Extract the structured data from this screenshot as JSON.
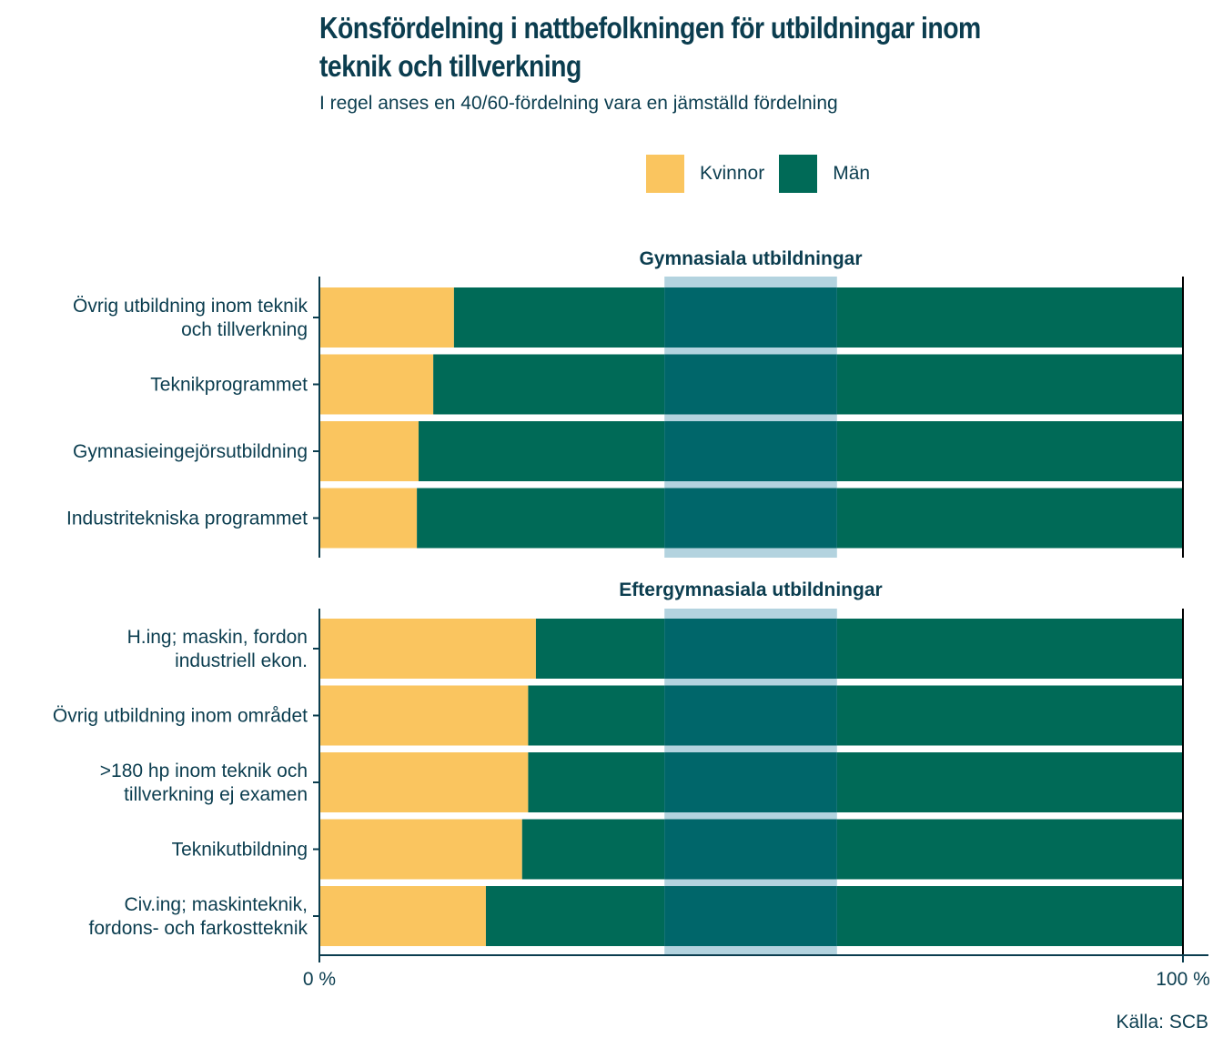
{
  "title_lines": [
    "Könsfördelning i nattbefolkningen för utbildningar inom",
    "teknik och tillverkning"
  ],
  "subtitle": "I regel anses en 40/60-fördelning vara en jämställd fördelning",
  "source": "Källa: SCB",
  "colors": {
    "kvinnor": "#fac55f",
    "man": "#006a57",
    "equality_band": "#b3d3df",
    "band_overlap": "#00666a",
    "axis": "#0b3d4f",
    "text": "#0b3d4f"
  },
  "legend": [
    {
      "label": "Kvinnor",
      "color": "#fac55f"
    },
    {
      "label": "Män",
      "color": "#006a57"
    }
  ],
  "chart_data": {
    "type": "bar",
    "orientation": "horizontal",
    "stacked": true,
    "title": "Könsfördelning i nattbefolkningen för utbildningar inom teknik och tillverkning",
    "subtitle": "I regel anses en 40/60-fördelning vara en jämställd fördelning",
    "xlabel": "",
    "ylabel": "",
    "xlim": [
      0,
      100
    ],
    "x_ticks": [
      0,
      100
    ],
    "x_tick_labels": [
      "0 %",
      "100 %"
    ],
    "legend_position": "top",
    "grid": false,
    "reference_band": {
      "from": 40,
      "to": 60,
      "label": "40/60-fördelning"
    },
    "panels": [
      {
        "title": "Gymnasiala utbildningar",
        "categories": [
          [
            "Övrig utbildning inom teknik",
            "och tillverkning"
          ],
          [
            "Teknikprogrammet"
          ],
          [
            "Gymnasieingejörsutbildning"
          ],
          [
            "Industritekniska programmet"
          ]
        ],
        "series": [
          {
            "name": "Kvinnor",
            "values": [
              15.6,
              13.2,
              11.5,
              11.3
            ]
          },
          {
            "name": "Män",
            "values": [
              84.4,
              86.8,
              88.5,
              88.7
            ]
          }
        ]
      },
      {
        "title": "Eftergymnasiala utbildningar",
        "categories": [
          [
            "H.ing; maskin, fordon",
            "industriell ekon."
          ],
          [
            "Övrig utbildning inom området"
          ],
          [
            ">180 hp inom teknik och",
            "tillverkning ej examen"
          ],
          [
            "Teknikutbildning"
          ],
          [
            "Civ.ing; maskinteknik,",
            "fordons- och farkostteknik"
          ]
        ],
        "series": [
          {
            "name": "Kvinnor",
            "values": [
              25.1,
              24.2,
              24.2,
              23.5,
              19.3
            ]
          },
          {
            "name": "Män",
            "values": [
              74.9,
              75.8,
              75.8,
              76.5,
              80.7
            ]
          }
        ]
      }
    ]
  }
}
